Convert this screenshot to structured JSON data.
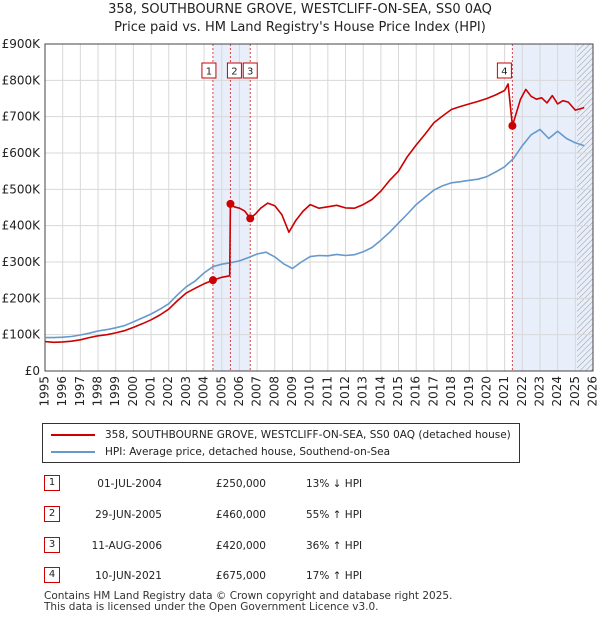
{
  "title": {
    "line1": "358, SOUTHBOURNE GROVE, WESTCLIFF-ON-SEA, SS0 0AQ",
    "line2": "Price paid vs. HM Land Registry's House Price Index (HPI)"
  },
  "legend": {
    "series1_label": "358, SOUTHBOURNE GROVE, WESTCLIFF-ON-SEA, SS0 0AQ (detached house)",
    "series1_color": "#cc0000",
    "series2_label": "HPI: Average price, detached house, Southend-on-Sea",
    "series2_color": "#6699cc"
  },
  "sales": [
    {
      "num": "1",
      "date": "01-JUL-2004",
      "price": "£250,000",
      "hpi": "13% ↓ HPI"
    },
    {
      "num": "2",
      "date": "29-JUN-2005",
      "price": "£460,000",
      "hpi": "55% ↑ HPI"
    },
    {
      "num": "3",
      "date": "11-AUG-2006",
      "price": "£420,000",
      "hpi": "36% ↑ HPI"
    },
    {
      "num": "4",
      "date": "10-JUN-2021",
      "price": "£675,000",
      "hpi": "17% ↑ HPI"
    }
  ],
  "footer": {
    "line1": "Contains HM Land Registry data © Crown copyright and database right 2025.",
    "line2": "This data is licensed under the Open Government Licence v3.0."
  },
  "chart_data": {
    "type": "line",
    "title": "358, SOUTHBOURNE GROVE, WESTCLIFF-ON-SEA, SS0 0AQ — Price paid vs. HM Land Registry's House Price Index (HPI)",
    "xlabel": "",
    "ylabel": "",
    "xlim": [
      1995,
      2026
    ],
    "ylim": [
      0,
      900000
    ],
    "x_ticks": [
      1995,
      1996,
      1997,
      1998,
      1999,
      2000,
      2001,
      2002,
      2003,
      2004,
      2005,
      2006,
      2007,
      2008,
      2009,
      2010,
      2011,
      2012,
      2013,
      2014,
      2015,
      2016,
      2017,
      2018,
      2019,
      2020,
      2021,
      2022,
      2023,
      2024,
      2025,
      2026
    ],
    "y_ticks": [
      {
        "value": 0,
        "label": "£0"
      },
      {
        "value": 100000,
        "label": "£100K"
      },
      {
        "value": 200000,
        "label": "£200K"
      },
      {
        "value": 300000,
        "label": "£300K"
      },
      {
        "value": 400000,
        "label": "£400K"
      },
      {
        "value": 500000,
        "label": "£500K"
      },
      {
        "value": 600000,
        "label": "£600K"
      },
      {
        "value": 700000,
        "label": "£700K"
      },
      {
        "value": 800000,
        "label": "£800K"
      },
      {
        "value": 900000,
        "label": "£900K"
      }
    ],
    "grid": true,
    "legend_position": "below",
    "shaded_periods": [
      {
        "from": 2004.5,
        "to": 2006.61
      },
      {
        "from": 2021.44,
        "to": 2026
      }
    ],
    "hatched_from": 2025.1,
    "sale_markers": [
      {
        "label": "1",
        "x": 2004.5,
        "y": 250000
      },
      {
        "label": "2",
        "x": 2005.49,
        "y": 460000
      },
      {
        "label": "3",
        "x": 2006.61,
        "y": 420000
      },
      {
        "label": "4",
        "x": 2021.44,
        "y": 675000
      }
    ],
    "series": [
      {
        "name": "358, SOUTHBOURNE GROVE, WESTCLIFF-ON-SEA, SS0 0AQ (detached house)",
        "color": "#cc0000",
        "x": [
          1995,
          1995.5,
          1996,
          1996.5,
          1997,
          1997.5,
          1998,
          1998.5,
          1999,
          1999.5,
          2000,
          2000.5,
          2001,
          2001.5,
          2002,
          2002.5,
          2003,
          2003.5,
          2004,
          2004.5,
          2005,
          2005.45,
          2005.49,
          2005.7,
          2006,
          2006.3,
          2006.61,
          2006.9,
          2007.2,
          2007.6,
          2008,
          2008.4,
          2008.8,
          2009.2,
          2009.6,
          2010,
          2010.5,
          2011,
          2011.5,
          2012,
          2012.5,
          2013,
          2013.5,
          2014,
          2014.5,
          2015,
          2015.5,
          2016,
          2016.5,
          2017,
          2017.5,
          2018,
          2018.5,
          2019,
          2019.5,
          2020,
          2020.5,
          2021,
          2021.2,
          2021.44,
          2021.6,
          2021.9,
          2022.2,
          2022.5,
          2022.8,
          2023.1,
          2023.4,
          2023.7,
          2024,
          2024.3,
          2024.6,
          2025,
          2025.5
        ],
        "y": [
          81000,
          79000,
          80000,
          82000,
          86000,
          92000,
          97000,
          100000,
          105000,
          111000,
          120000,
          130000,
          141000,
          154000,
          170000,
          194000,
          215000,
          228000,
          240000,
          250000,
          258000,
          262000,
          460000,
          452000,
          448000,
          440000,
          420000,
          432000,
          448000,
          462000,
          455000,
          430000,
          382000,
          415000,
          440000,
          458000,
          448000,
          452000,
          456000,
          449000,
          448000,
          458000,
          472000,
          495000,
          525000,
          550000,
          590000,
          622000,
          652000,
          683000,
          702000,
          720000,
          728000,
          735000,
          742000,
          750000,
          760000,
          772000,
          790000,
          675000,
          700000,
          748000,
          775000,
          756000,
          748000,
          752000,
          738000,
          758000,
          735000,
          744000,
          740000,
          718000,
          725000
        ]
      },
      {
        "name": "HPI: Average price, detached house, Southend-on-Sea",
        "color": "#6699cc",
        "x": [
          1995,
          1995.5,
          1996,
          1996.5,
          1997,
          1997.5,
          1998,
          1998.5,
          1999,
          1999.5,
          2000,
          2000.5,
          2001,
          2001.5,
          2002,
          2002.5,
          2003,
          2003.5,
          2004,
          2004.5,
          2005,
          2005.5,
          2006,
          2006.5,
          2007,
          2007.5,
          2008,
          2008.5,
          2009,
          2009.5,
          2010,
          2010.5,
          2011,
          2011.5,
          2012,
          2012.5,
          2013,
          2013.5,
          2014,
          2014.5,
          2015,
          2015.5,
          2016,
          2016.5,
          2017,
          2017.5,
          2018,
          2018.5,
          2019,
          2019.5,
          2020,
          2020.5,
          2021,
          2021.5,
          2022,
          2022.5,
          2023,
          2023.5,
          2024,
          2024.5,
          2025,
          2025.5
        ],
        "y": [
          92000,
          92000,
          93000,
          95000,
          99000,
          104000,
          110000,
          114000,
          119000,
          125000,
          135000,
          146000,
          157000,
          170000,
          185000,
          210000,
          232000,
          248000,
          270000,
          287000,
          294000,
          298000,
          303000,
          312000,
          322000,
          327000,
          314000,
          295000,
          282000,
          300000,
          315000,
          318000,
          317000,
          321000,
          318000,
          320000,
          328000,
          340000,
          360000,
          382000,
          407000,
          432000,
          458000,
          478000,
          498000,
          510000,
          518000,
          521000,
          525000,
          528000,
          535000,
          548000,
          562000,
          585000,
          620000,
          650000,
          665000,
          640000,
          660000,
          640000,
          628000,
          620000
        ]
      }
    ]
  }
}
